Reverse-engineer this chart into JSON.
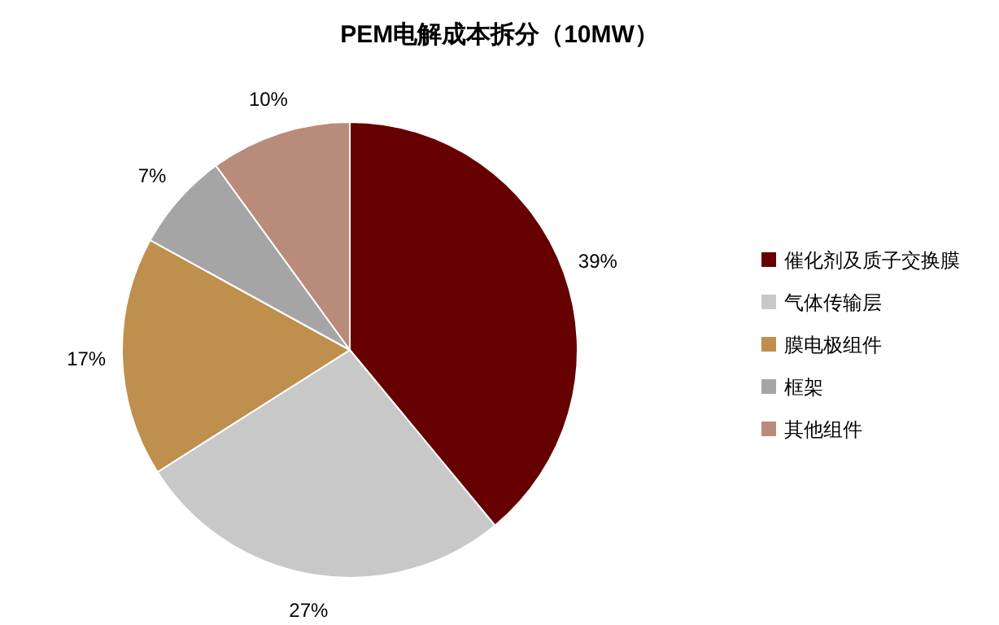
{
  "chart_data": {
    "type": "pie",
    "title": "PEM电解成本拆分（10MW）",
    "categories": [
      "催化剂及质子交换膜",
      "气体传输层",
      "膜电极组件",
      "框架",
      "其他组件"
    ],
    "values": [
      39,
      27,
      17,
      7,
      10
    ],
    "colors": [
      "#660000",
      "#c8c8c8",
      "#bf8f4e",
      "#a5a5a5",
      "#b98b7a"
    ],
    "value_labels": [
      "39%",
      "27%",
      "17%",
      "7%",
      "10%"
    ],
    "legend": "right"
  }
}
